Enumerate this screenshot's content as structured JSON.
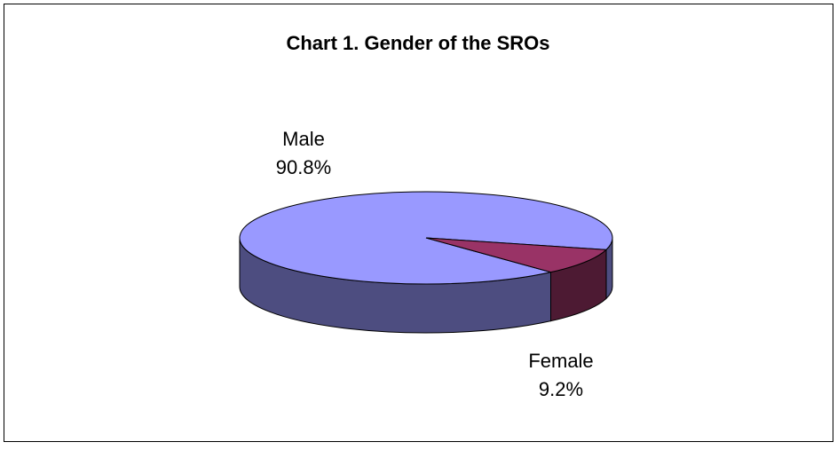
{
  "chart_data": {
    "type": "pie3d",
    "title": "Chart 1. Gender of the SROs",
    "categories": [
      "Male",
      "Female"
    ],
    "values": [
      90.8,
      9.2
    ],
    "value_labels": [
      "90.8%",
      "9.2%"
    ],
    "colors": [
      "#9999ff",
      "#993366"
    ],
    "side_colors": [
      "#4d4d80",
      "#4d1a33"
    ]
  }
}
